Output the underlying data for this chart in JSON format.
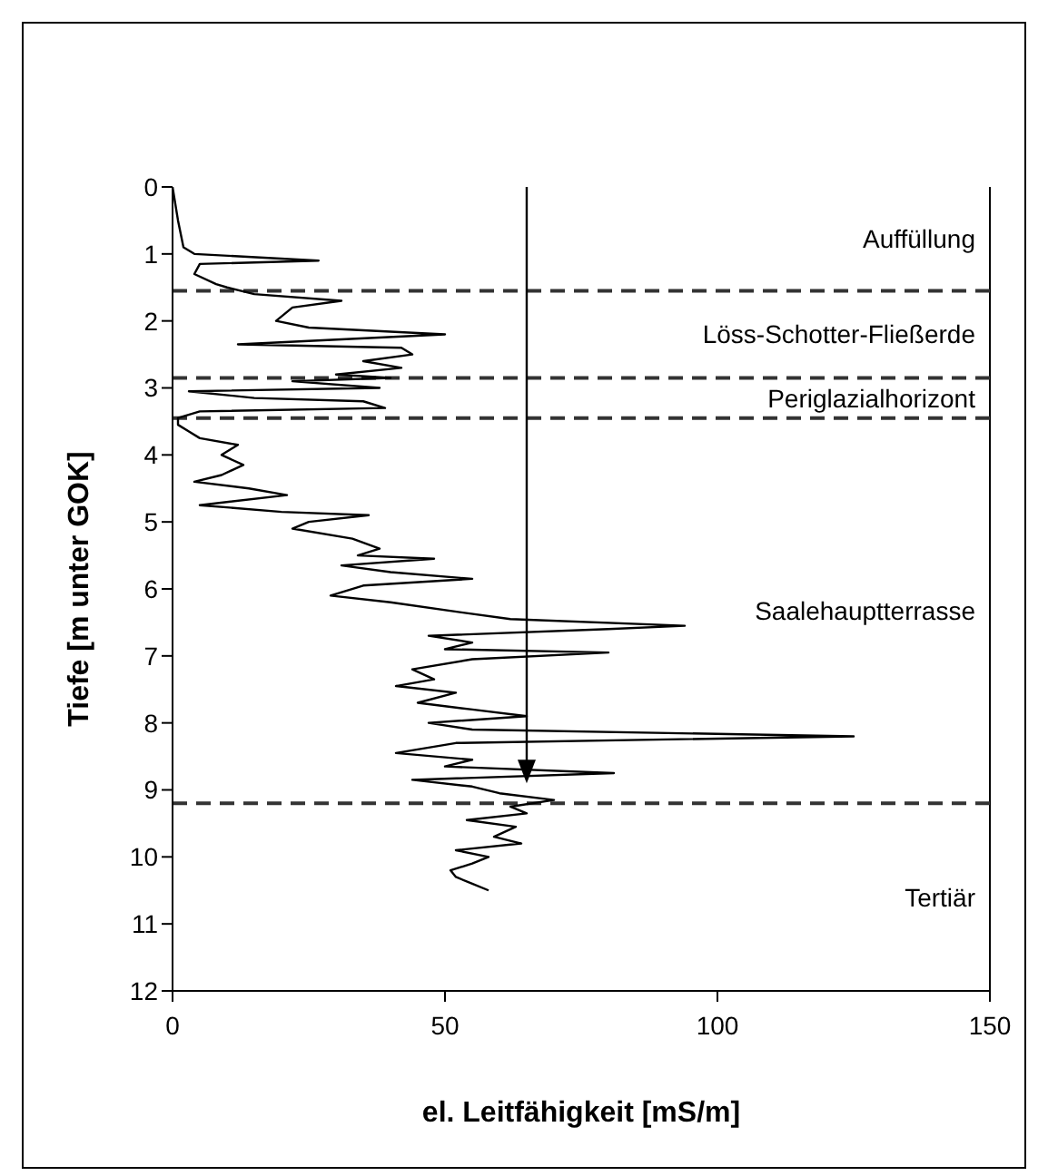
{
  "chart_data": {
    "type": "line",
    "xlabel": "el. Leitfähigkeit [mS/m]",
    "ylabel": "Tiefe [m unter GOK]",
    "series": [
      {
        "color": "#000000",
        "x": [
          0,
          1,
          2,
          4,
          26.8,
          5,
          4,
          8,
          10,
          15,
          31,
          22,
          19,
          25,
          50,
          12,
          42,
          44,
          35,
          42,
          30,
          40,
          22,
          38,
          3,
          15,
          35,
          39,
          5,
          1,
          1,
          3,
          5,
          12,
          9,
          13,
          9,
          4,
          14,
          21,
          5,
          20,
          36,
          25,
          22,
          33,
          38,
          34,
          48,
          31,
          40,
          55,
          35,
          29,
          40,
          53,
          62,
          94,
          80,
          47,
          55,
          50,
          80,
          55,
          44,
          48,
          41,
          52,
          45,
          55,
          65,
          47,
          55,
          125,
          52,
          41,
          55,
          50,
          81,
          44,
          55,
          60,
          70,
          62,
          65,
          54,
          63,
          59,
          64,
          52,
          58,
          55,
          51,
          52,
          55,
          58
        ],
        "values": [
          0,
          0.5,
          0.9,
          1.0,
          1.1,
          1.15,
          1.3,
          1.45,
          1.5,
          1.6,
          1.7,
          1.8,
          2.0,
          2.1,
          2.2,
          2.35,
          2.4,
          2.5,
          2.6,
          2.7,
          2.8,
          2.85,
          2.9,
          3.0,
          3.05,
          3.15,
          3.2,
          3.3,
          3.35,
          3.45,
          3.55,
          3.65,
          3.75,
          3.85,
          4.0,
          4.15,
          4.3,
          4.4,
          4.5,
          4.6,
          4.75,
          4.85,
          4.9,
          5.0,
          5.1,
          5.25,
          5.4,
          5.5,
          5.55,
          5.65,
          5.75,
          5.85,
          5.95,
          6.1,
          6.2,
          6.35,
          6.45,
          6.55,
          6.6,
          6.7,
          6.8,
          6.9,
          6.95,
          7.05,
          7.2,
          7.35,
          7.45,
          7.55,
          7.7,
          7.8,
          7.9,
          8.0,
          8.1,
          8.2,
          8.3,
          8.45,
          8.55,
          8.65,
          8.75,
          8.85,
          8.95,
          9.05,
          9.15,
          9.25,
          9.35,
          9.45,
          9.55,
          9.7,
          9.8,
          9.9,
          10.0,
          10.1,
          10.2,
          10.3,
          10.4,
          10.5
        ]
      }
    ],
    "xlim": [
      0,
      150
    ],
    "xticks": [
      0,
      50,
      100,
      150
    ],
    "ylim": [
      12,
      0
    ],
    "yticks": [
      0,
      1,
      2,
      3,
      4,
      5,
      6,
      7,
      8,
      9,
      10,
      11,
      12
    ],
    "ref_lines": [
      {
        "axis": "y",
        "value": 1.55,
        "color": "#333333",
        "line_style": "dashed"
      },
      {
        "axis": "y",
        "value": 2.85,
        "color": "#333333",
        "line_style": "dashed"
      },
      {
        "axis": "y",
        "value": 3.45,
        "color": "#333333",
        "line_style": "dashed"
      },
      {
        "axis": "y",
        "value": 9.2,
        "color": "#333333",
        "line_style": "dashed"
      }
    ],
    "annotations": [
      "Auffüllung",
      "Löss-Schotter-Fließerde",
      "Periglazialhorizont",
      "Saalehauptterrasse",
      "Tertiär"
    ],
    "grid": false,
    "legend": false,
    "marker": "none",
    "line_style": "solid"
  }
}
